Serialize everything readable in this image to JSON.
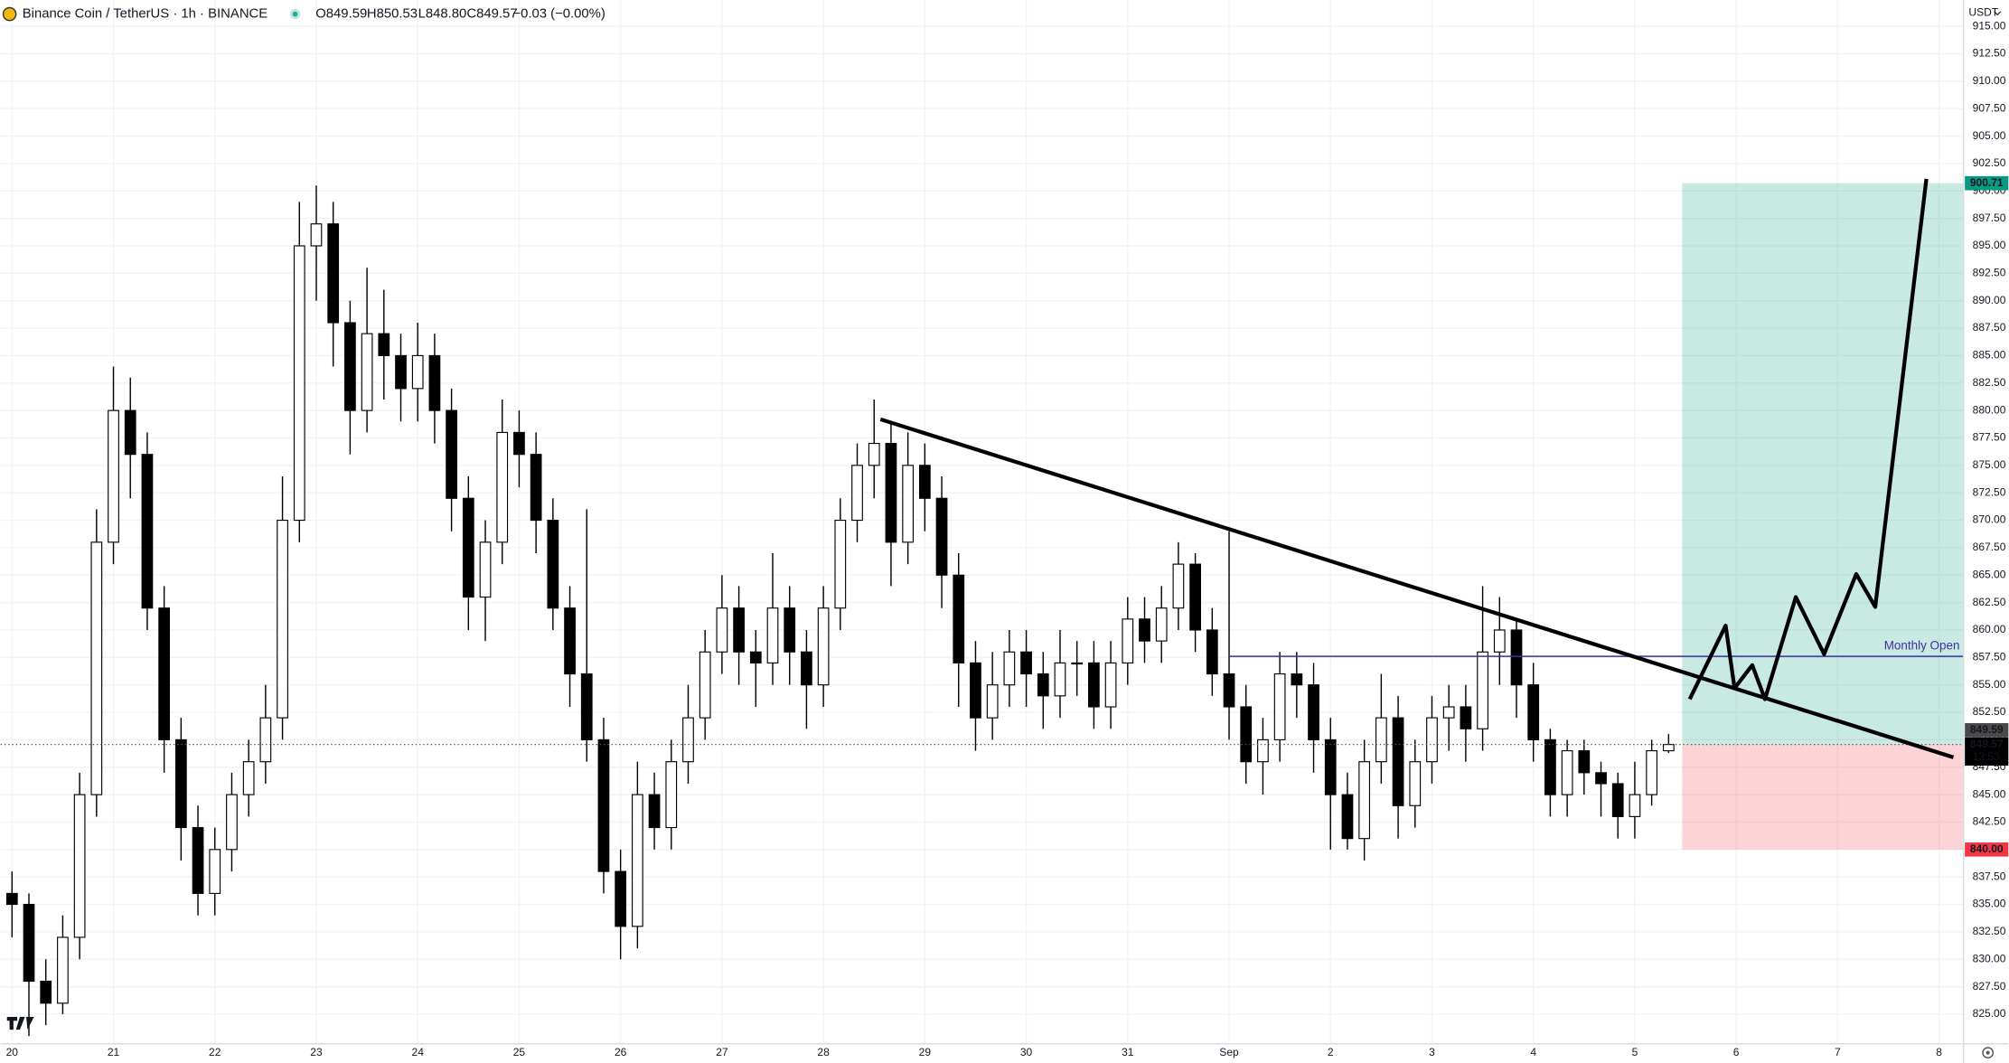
{
  "header": {
    "symbol": "Binance Coin / TetherUS · 1h · BINANCE",
    "open": "O849.59",
    "high": "H850.53",
    "low": "L848.80",
    "close": "C849.57",
    "change": "−0.03 (−0.00%)",
    "currency": "USDT"
  },
  "chart_data": {
    "type": "candlestick",
    "x": [
      0,
      4,
      8,
      12,
      16,
      20,
      24,
      28,
      32,
      36,
      40,
      44,
      48,
      52,
      56,
      60,
      64,
      68,
      72,
      76,
      80,
      84,
      88,
      92,
      96,
      100,
      104,
      108,
      112,
      116,
      120,
      124,
      128,
      132,
      136,
      140,
      144,
      148,
      152,
      156,
      160,
      164,
      168,
      172,
      176,
      180,
      184,
      188,
      192,
      196,
      200,
      204,
      208,
      212,
      216,
      220,
      224,
      228,
      232,
      236,
      240,
      244,
      248,
      252,
      256,
      260,
      264,
      268,
      272,
      276,
      280,
      284,
      288,
      292,
      296,
      300,
      304,
      308,
      312,
      316,
      320,
      324,
      328,
      332,
      336,
      340,
      344,
      348,
      352,
      356,
      360,
      364,
      368,
      372,
      376,
      380,
      384,
      388,
      392
    ],
    "open": [
      836,
      835,
      828,
      826,
      832,
      845,
      868,
      880,
      876,
      862,
      850,
      842,
      836,
      840,
      845,
      848,
      852,
      870,
      895,
      897,
      888,
      880,
      887,
      885,
      882,
      885,
      880,
      872,
      863,
      868,
      878,
      876,
      870,
      862,
      856,
      850,
      838,
      833,
      845,
      842,
      848,
      852,
      858,
      862,
      858,
      857,
      862,
      858,
      855,
      862,
      870,
      875,
      877,
      868,
      875,
      872,
      865,
      857,
      852,
      855,
      858,
      856,
      854,
      857,
      857,
      853,
      857,
      861,
      859,
      862,
      866,
      860,
      856,
      853,
      848,
      850,
      856,
      855,
      850,
      845,
      841,
      848,
      852,
      844,
      848,
      852,
      853,
      851,
      858,
      860,
      855,
      850,
      845,
      849,
      847,
      846,
      843,
      845,
      849
    ],
    "high": [
      838,
      836,
      830,
      834,
      847,
      871,
      884,
      883,
      878,
      864,
      852,
      844,
      842,
      847,
      850,
      855,
      874,
      899,
      900.5,
      899,
      890,
      893,
      891,
      887,
      888,
      887,
      882,
      874,
      870,
      881,
      880,
      878,
      872,
      864,
      871,
      852,
      840,
      848,
      847,
      850,
      855,
      860,
      865,
      864,
      860,
      867,
      864,
      860,
      864,
      872,
      877,
      881,
      879,
      878,
      877,
      874,
      867,
      859,
      858,
      860,
      860,
      858,
      860,
      859,
      859,
      859,
      863,
      863,
      864,
      868,
      867,
      862,
      869,
      855,
      852,
      858,
      858,
      857,
      852,
      847,
      850,
      856,
      854,
      850,
      854,
      855,
      855,
      864,
      863,
      861,
      857,
      851,
      850,
      850,
      848,
      847,
      848,
      850,
      850.53
    ],
    "low": [
      832,
      823,
      824,
      825,
      830,
      843,
      866,
      872,
      860,
      847,
      839,
      834,
      834,
      838,
      843,
      846,
      850,
      868,
      890,
      884,
      876,
      878,
      881,
      879,
      879,
      877,
      869,
      860,
      859,
      866,
      873,
      867,
      860,
      853,
      848,
      836,
      830,
      831,
      840,
      840,
      846,
      850,
      856,
      855,
      853,
      855,
      855,
      851,
      853,
      860,
      868,
      872,
      864,
      866,
      869,
      862,
      853,
      849,
      850,
      853,
      853,
      851,
      852,
      854,
      851,
      851,
      855,
      857,
      857,
      860,
      858,
      854,
      850,
      846,
      845,
      848,
      852,
      847,
      840,
      840,
      839,
      846,
      841,
      842,
      846,
      849,
      848,
      849,
      855,
      852,
      848,
      843,
      843,
      845,
      843,
      841,
      841,
      844,
      848.8
    ],
    "close": [
      835,
      828,
      826,
      832,
      845,
      868,
      880,
      876,
      862,
      850,
      842,
      836,
      840,
      845,
      848,
      852,
      870,
      895,
      897,
      888,
      880,
      887,
      885,
      882,
      885,
      880,
      872,
      863,
      868,
      878,
      876,
      870,
      862,
      856,
      850,
      838,
      833,
      845,
      842,
      848,
      852,
      858,
      862,
      858,
      857,
      862,
      858,
      855,
      862,
      870,
      875,
      877,
      868,
      875,
      872,
      865,
      857,
      852,
      855,
      858,
      856,
      854,
      857,
      857,
      853,
      857,
      861,
      859,
      862,
      866,
      860,
      856,
      853,
      848,
      850,
      856,
      855,
      850,
      845,
      841,
      848,
      852,
      844,
      848,
      852,
      853,
      851,
      858,
      860,
      855,
      850,
      845,
      849,
      847,
      846,
      843,
      845,
      849,
      849.57
    ],
    "xlim": [
      -2.7,
      461.8
    ],
    "xticks": [
      {
        "value": 0,
        "label": "20"
      },
      {
        "value": 24,
        "label": "21"
      },
      {
        "value": 48,
        "label": "22"
      },
      {
        "value": 72,
        "label": "23"
      },
      {
        "value": 96,
        "label": "24"
      },
      {
        "value": 120,
        "label": "25"
      },
      {
        "value": 144,
        "label": "26"
      },
      {
        "value": 168,
        "label": "27"
      },
      {
        "value": 192,
        "label": "28"
      },
      {
        "value": 216,
        "label": "29"
      },
      {
        "value": 240,
        "label": "30"
      },
      {
        "value": 264,
        "label": "31"
      },
      {
        "value": 288,
        "label": "Sep"
      },
      {
        "value": 312,
        "label": "2"
      },
      {
        "value": 336,
        "label": "3"
      },
      {
        "value": 360,
        "label": "4"
      },
      {
        "value": 384,
        "label": "5"
      },
      {
        "value": 408,
        "label": "6"
      },
      {
        "value": 432,
        "label": "7"
      },
      {
        "value": 456,
        "label": "8"
      }
    ],
    "ylim": [
      822.3,
      917.4
    ],
    "yticks": [
      {
        "value": 825,
        "label": "825.00"
      },
      {
        "value": 827.5,
        "label": "827.50"
      },
      {
        "value": 830,
        "label": "830.00"
      },
      {
        "value": 832.5,
        "label": "832.50"
      },
      {
        "value": 835,
        "label": "835.00"
      },
      {
        "value": 837.5,
        "label": "837.50"
      },
      {
        "value": 840,
        "label": "840.00"
      },
      {
        "value": 842.5,
        "label": "842.50"
      },
      {
        "value": 845,
        "label": "845.00"
      },
      {
        "value": 847.5,
        "label": "847.50"
      },
      {
        "value": 850,
        "label": "850.00"
      },
      {
        "value": 852.5,
        "label": "852.50"
      },
      {
        "value": 855,
        "label": "855.00"
      },
      {
        "value": 857.5,
        "label": "857.50"
      },
      {
        "value": 860,
        "label": "860.00"
      },
      {
        "value": 862.5,
        "label": "862.50"
      },
      {
        "value": 865,
        "label": "865.00"
      },
      {
        "value": 867.5,
        "label": "867.50"
      },
      {
        "value": 870,
        "label": "870.00"
      },
      {
        "value": 872.5,
        "label": "872.50"
      },
      {
        "value": 875,
        "label": "875.00"
      },
      {
        "value": 877.5,
        "label": "877.50"
      },
      {
        "value": 880,
        "label": "880.00"
      },
      {
        "value": 882.5,
        "label": "882.50"
      },
      {
        "value": 885,
        "label": "885.00"
      },
      {
        "value": 887.5,
        "label": "887.50"
      },
      {
        "value": 890,
        "label": "890.00"
      },
      {
        "value": 892.5,
        "label": "892.50"
      },
      {
        "value": 895,
        "label": "895.00"
      },
      {
        "value": 897.5,
        "label": "897.50"
      },
      {
        "value": 900,
        "label": "900.00"
      },
      {
        "value": 902.5,
        "label": "902.50"
      },
      {
        "value": 905,
        "label": "905.00"
      },
      {
        "value": 907.5,
        "label": "907.50"
      },
      {
        "value": 910,
        "label": "910.00"
      },
      {
        "value": 912.5,
        "label": "912.50"
      },
      {
        "value": 915,
        "label": "915.00"
      }
    ],
    "up_color": "#ffffff",
    "down_color": "#000000",
    "outline_color": "#000000",
    "monthly_open": {
      "label": "Monthly Open",
      "value": 857.6,
      "start": 288,
      "color": "#3f2fa0"
    },
    "trendline": {
      "x": [
        205.5,
        459.4
      ],
      "y": [
        879.2,
        848.4
      ]
    },
    "projection": {
      "x": [
        397.0,
        405.5,
        407.6,
        411.8,
        414.8,
        422.1,
        428.8,
        436.4,
        440.9,
        453.0
      ],
      "y": [
        853.7,
        860.4,
        854.7,
        856.8,
        853.7,
        863.0,
        857.8,
        865.1,
        862.1,
        901.1
      ]
    },
    "position": {
      "start": 395.2,
      "target": 900.71,
      "stop": {
        "value": 840,
        "label": "840.00"
      },
      "entry": 849.57,
      "target_color": "#089981",
      "stop_color": "#f23645"
    },
    "price_labels": {
      "upper": 849.59,
      "last": 849.57,
      "countdown": "13:53"
    }
  }
}
